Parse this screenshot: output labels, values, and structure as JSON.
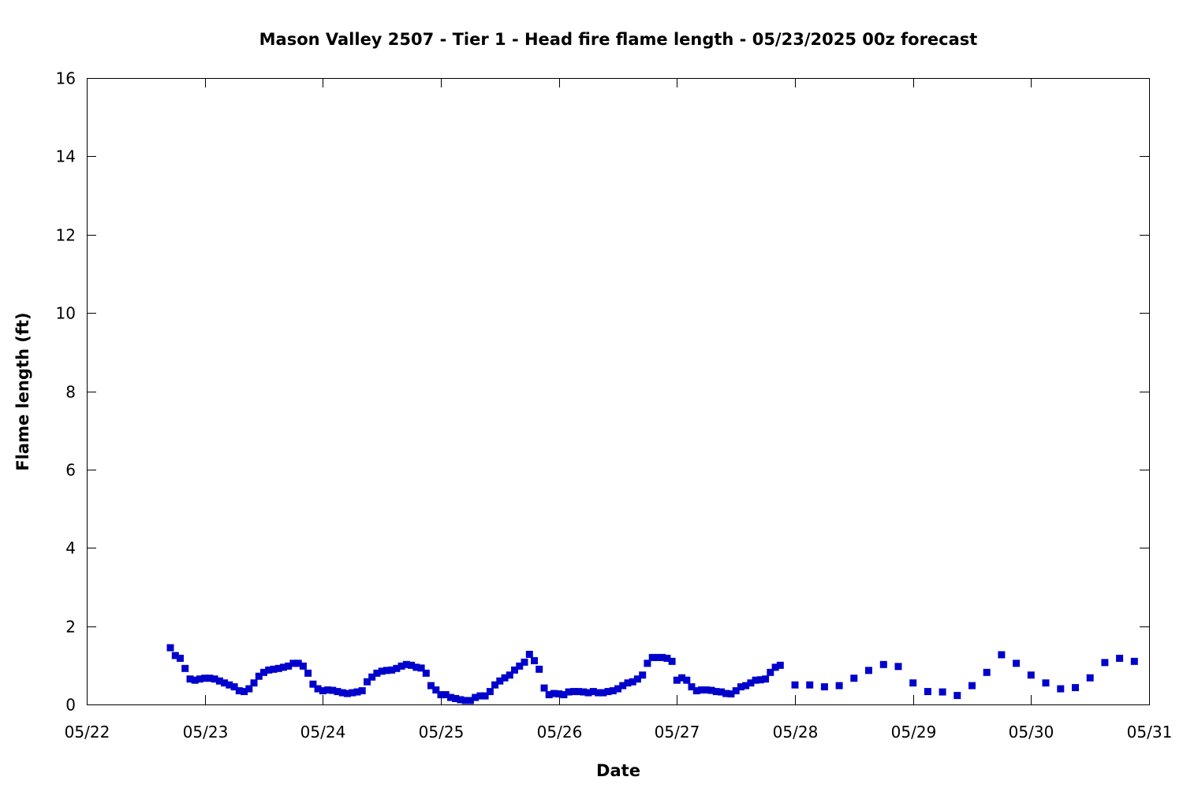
{
  "chart_data": {
    "type": "scatter",
    "title": "Mason Valley 2507 - Tier 1 - Head fire flame length - 05/23/2025 00z forecast",
    "xlabel": "Date",
    "ylabel": "Flame length (ft)",
    "x_ticks": [
      "05/22",
      "05/23",
      "05/24",
      "05/25",
      "05/26",
      "05/27",
      "05/28",
      "05/29",
      "05/30",
      "05/31"
    ],
    "y_ticks": [
      "0",
      "2",
      "4",
      "6",
      "8",
      "10",
      "12",
      "14",
      "16"
    ],
    "xlim": [
      "05/22",
      "05/31"
    ],
    "ylim": [
      0,
      16
    ],
    "grid": false,
    "marker_color": "#0000cc",
    "marker": "square",
    "series": [
      {
        "points": [
          [
            "05/22 17:00",
            1.45
          ],
          [
            "05/22 18:00",
            1.25
          ],
          [
            "05/22 19:00",
            1.18
          ],
          [
            "05/22 20:00",
            0.92
          ],
          [
            "05/22 21:00",
            0.65
          ],
          [
            "05/22 22:00",
            0.62
          ],
          [
            "05/22 23:00",
            0.65
          ],
          [
            "05/23 00:00",
            0.67
          ],
          [
            "05/23 01:00",
            0.67
          ],
          [
            "05/23 02:00",
            0.65
          ],
          [
            "05/23 03:00",
            0.6
          ],
          [
            "05/23 04:00",
            0.55
          ],
          [
            "05/23 05:00",
            0.5
          ],
          [
            "05/23 06:00",
            0.45
          ],
          [
            "05/23 07:00",
            0.35
          ],
          [
            "05/23 08:00",
            0.33
          ],
          [
            "05/23 09:00",
            0.4
          ],
          [
            "05/23 10:00",
            0.55
          ],
          [
            "05/23 11:00",
            0.72
          ],
          [
            "05/23 12:00",
            0.82
          ],
          [
            "05/23 13:00",
            0.88
          ],
          [
            "05/23 14:00",
            0.9
          ],
          [
            "05/23 15:00",
            0.92
          ],
          [
            "05/23 16:00",
            0.95
          ],
          [
            "05/23 17:00",
            0.98
          ],
          [
            "05/23 18:00",
            1.05
          ],
          [
            "05/23 19:00",
            1.05
          ],
          [
            "05/23 20:00",
            0.98
          ],
          [
            "05/23 21:00",
            0.8
          ],
          [
            "05/23 22:00",
            0.52
          ],
          [
            "05/23 23:00",
            0.4
          ],
          [
            "05/24 00:00",
            0.35
          ],
          [
            "05/24 01:00",
            0.37
          ],
          [
            "05/24 02:00",
            0.36
          ],
          [
            "05/24 03:00",
            0.33
          ],
          [
            "05/24 04:00",
            0.3
          ],
          [
            "05/24 05:00",
            0.28
          ],
          [
            "05/24 06:00",
            0.3
          ],
          [
            "05/24 07:00",
            0.32
          ],
          [
            "05/24 08:00",
            0.35
          ],
          [
            "05/24 09:00",
            0.58
          ],
          [
            "05/24 10:00",
            0.7
          ],
          [
            "05/24 11:00",
            0.8
          ],
          [
            "05/24 12:00",
            0.85
          ],
          [
            "05/24 13:00",
            0.87
          ],
          [
            "05/24 14:00",
            0.88
          ],
          [
            "05/24 15:00",
            0.92
          ],
          [
            "05/24 16:00",
            0.98
          ],
          [
            "05/24 17:00",
            1.02
          ],
          [
            "05/24 18:00",
            1.0
          ],
          [
            "05/24 19:00",
            0.95
          ],
          [
            "05/24 20:00",
            0.93
          ],
          [
            "05/24 21:00",
            0.8
          ],
          [
            "05/24 22:00",
            0.48
          ],
          [
            "05/24 23:00",
            0.37
          ],
          [
            "05/25 00:00",
            0.25
          ],
          [
            "05/25 01:00",
            0.25
          ],
          [
            "05/25 02:00",
            0.18
          ],
          [
            "05/25 03:00",
            0.15
          ],
          [
            "05/25 04:00",
            0.12
          ],
          [
            "05/25 05:00",
            0.1
          ],
          [
            "05/25 06:00",
            0.1
          ],
          [
            "05/25 07:00",
            0.18
          ],
          [
            "05/25 08:00",
            0.22
          ],
          [
            "05/25 09:00",
            0.22
          ],
          [
            "05/25 10:00",
            0.33
          ],
          [
            "05/25 11:00",
            0.5
          ],
          [
            "05/25 12:00",
            0.6
          ],
          [
            "05/25 13:00",
            0.68
          ],
          [
            "05/25 14:00",
            0.75
          ],
          [
            "05/25 15:00",
            0.88
          ],
          [
            "05/25 16:00",
            0.98
          ],
          [
            "05/25 17:00",
            1.08
          ],
          [
            "05/25 18:00",
            1.28
          ],
          [
            "05/25 19:00",
            1.12
          ],
          [
            "05/25 20:00",
            0.9
          ],
          [
            "05/25 21:00",
            0.42
          ],
          [
            "05/25 22:00",
            0.25
          ],
          [
            "05/25 23:00",
            0.28
          ],
          [
            "05/26 00:00",
            0.27
          ],
          [
            "05/26 01:00",
            0.25
          ],
          [
            "05/26 02:00",
            0.32
          ],
          [
            "05/26 03:00",
            0.33
          ],
          [
            "05/26 04:00",
            0.33
          ],
          [
            "05/26 05:00",
            0.32
          ],
          [
            "05/26 06:00",
            0.3
          ],
          [
            "05/26 07:00",
            0.33
          ],
          [
            "05/26 08:00",
            0.3
          ],
          [
            "05/26 09:00",
            0.3
          ],
          [
            "05/26 10:00",
            0.33
          ],
          [
            "05/26 11:00",
            0.35
          ],
          [
            "05/26 12:00",
            0.4
          ],
          [
            "05/26 13:00",
            0.48
          ],
          [
            "05/26 14:00",
            0.55
          ],
          [
            "05/26 15:00",
            0.58
          ],
          [
            "05/26 16:00",
            0.65
          ],
          [
            "05/26 17:00",
            0.75
          ],
          [
            "05/26 18:00",
            1.05
          ],
          [
            "05/26 19:00",
            1.2
          ],
          [
            "05/26 20:00",
            1.2
          ],
          [
            "05/26 21:00",
            1.2
          ],
          [
            "05/26 22:00",
            1.18
          ],
          [
            "05/26 23:00",
            1.1
          ],
          [
            "05/27 00:00",
            0.62
          ],
          [
            "05/27 01:00",
            0.68
          ],
          [
            "05/27 02:00",
            0.62
          ],
          [
            "05/27 03:00",
            0.45
          ],
          [
            "05/27 04:00",
            0.35
          ],
          [
            "05/27 05:00",
            0.37
          ],
          [
            "05/27 06:00",
            0.37
          ],
          [
            "05/27 07:00",
            0.36
          ],
          [
            "05/27 08:00",
            0.33
          ],
          [
            "05/27 09:00",
            0.32
          ],
          [
            "05/27 10:00",
            0.28
          ],
          [
            "05/27 11:00",
            0.27
          ],
          [
            "05/27 12:00",
            0.35
          ],
          [
            "05/27 13:00",
            0.45
          ],
          [
            "05/27 14:00",
            0.48
          ],
          [
            "05/27 15:00",
            0.55
          ],
          [
            "05/27 16:00",
            0.62
          ],
          [
            "05/27 17:00",
            0.63
          ],
          [
            "05/27 18:00",
            0.65
          ],
          [
            "05/27 19:00",
            0.82
          ],
          [
            "05/27 20:00",
            0.95
          ],
          [
            "05/27 21:00",
            1.0
          ],
          [
            "05/28 00:00",
            0.5
          ],
          [
            "05/28 03:00",
            0.5
          ],
          [
            "05/28 06:00",
            0.45
          ],
          [
            "05/28 09:00",
            0.48
          ],
          [
            "05/28 12:00",
            0.67
          ],
          [
            "05/28 15:00",
            0.87
          ],
          [
            "05/28 18:00",
            1.02
          ],
          [
            "05/28 21:00",
            0.97
          ],
          [
            "05/29 00:00",
            0.55
          ],
          [
            "05/29 03:00",
            0.33
          ],
          [
            "05/29 06:00",
            0.32
          ],
          [
            "05/29 09:00",
            0.23
          ],
          [
            "05/29 12:00",
            0.48
          ],
          [
            "05/29 15:00",
            0.82
          ],
          [
            "05/29 18:00",
            1.27
          ],
          [
            "05/29 21:00",
            1.05
          ],
          [
            "05/30 00:00",
            0.75
          ],
          [
            "05/30 03:00",
            0.55
          ],
          [
            "05/30 06:00",
            0.4
          ],
          [
            "05/30 09:00",
            0.43
          ],
          [
            "05/30 12:00",
            0.68
          ],
          [
            "05/30 15:00",
            1.07
          ],
          [
            "05/30 18:00",
            1.18
          ],
          [
            "05/30 21:00",
            1.1
          ]
        ]
      }
    ]
  }
}
